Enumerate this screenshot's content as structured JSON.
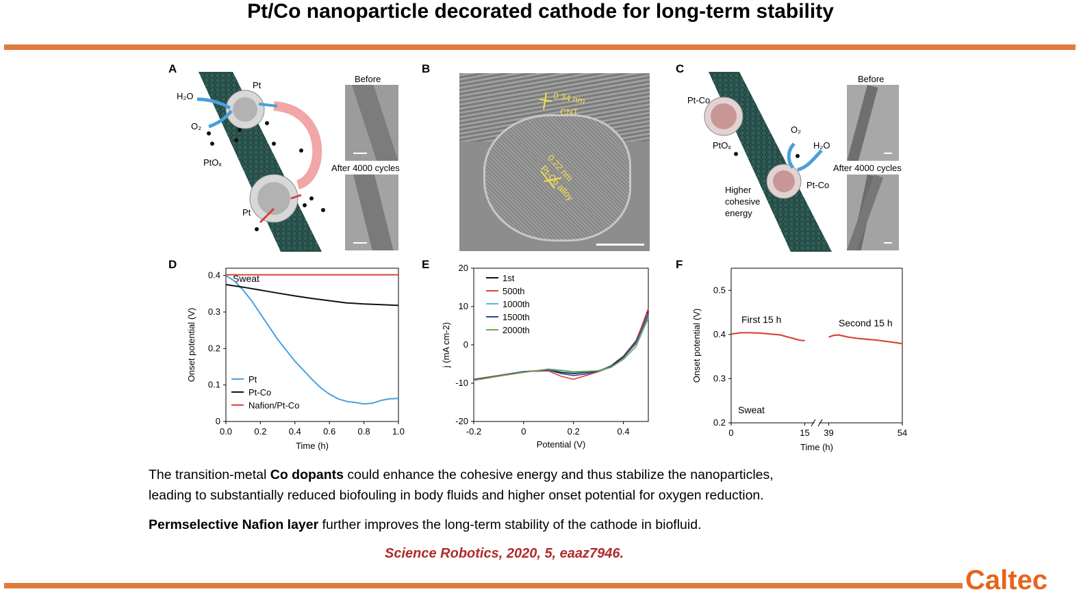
{
  "slide": {
    "title": "Pt/Co nanoparticle decorated cathode for long-term stability",
    "colors": {
      "rule": "#e07a3c",
      "citation": "#b02a2a",
      "brand": "#e5651d"
    }
  },
  "panelA": {
    "letter": "A",
    "labels": {
      "h2o": "H₂O",
      "o2": "O₂",
      "pt_top": "Pt",
      "ptox": "PtOₓ",
      "pt_bottom": "Pt"
    },
    "before": "Before",
    "after": "After 4000 cycles"
  },
  "panelB": {
    "letter": "B",
    "label_cnt_spacing": "0.34 nm",
    "label_cnt": "CNT",
    "label_alloy_spacing": "0.22 nm",
    "label_alloy": "Pt-Co alloy"
  },
  "panelC": {
    "letter": "C",
    "labels": {
      "ptco_top": "Pt-Co",
      "ptox": "PtOₓ",
      "o2": "O₂",
      "h2o": "H₂O",
      "ptco_bottom": "Pt-Co",
      "higher": "Higher",
      "cohesive": "cohesive",
      "energy": "energy"
    },
    "before": "Before",
    "after": "After 4000 cycles"
  },
  "charts": {
    "D": {
      "letter": "D"
    },
    "E": {
      "letter": "E"
    },
    "F": {
      "letter": "F"
    }
  },
  "chart_data": [
    {
      "type": "line",
      "panel": "D",
      "xlabel": "Time (h)",
      "ylabel": "Onset potential (V)",
      "xlim": [
        0,
        1.0
      ],
      "ylim": [
        0,
        0.42
      ],
      "xticks": [
        "0.0",
        "0.2",
        "0.4",
        "0.6",
        "0.8",
        "1.0"
      ],
      "yticks": [
        "0",
        "0.1",
        "0.2",
        "0.3",
        "0.4"
      ],
      "annotation": "Sweat",
      "legend_position": "bottom-left",
      "series": [
        {
          "name": "Pt",
          "color": "#4a9fdb",
          "x": [
            0,
            0.05,
            0.1,
            0.15,
            0.2,
            0.25,
            0.3,
            0.35,
            0.4,
            0.45,
            0.5,
            0.55,
            0.6,
            0.65,
            0.7,
            0.75,
            0.8,
            0.85,
            0.9,
            0.95,
            1.0
          ],
          "y": [
            0.4,
            0.385,
            0.36,
            0.33,
            0.295,
            0.26,
            0.225,
            0.195,
            0.165,
            0.14,
            0.115,
            0.092,
            0.075,
            0.062,
            0.055,
            0.052,
            0.048,
            0.05,
            0.058,
            0.062,
            0.063
          ]
        },
        {
          "name": "Pt-Co",
          "color": "#111111",
          "x": [
            0,
            0.1,
            0.2,
            0.3,
            0.4,
            0.5,
            0.6,
            0.7,
            0.8,
            0.9,
            1.0
          ],
          "y": [
            0.375,
            0.368,
            0.36,
            0.352,
            0.344,
            0.337,
            0.331,
            0.325,
            0.322,
            0.32,
            0.318
          ]
        },
        {
          "name": "Nafion/Pt-Co",
          "color": "#d9443a",
          "x": [
            0,
            0.5,
            1.0
          ],
          "y": [
            0.402,
            0.402,
            0.402
          ]
        }
      ]
    },
    {
      "type": "line",
      "panel": "E",
      "xlabel": "Potential (V)",
      "ylabel": "j (mA cm-2)",
      "xlim": [
        -0.2,
        0.5
      ],
      "ylim": [
        -20,
        20
      ],
      "xticks": [
        "-0.2",
        "0",
        "0.2",
        "0.4"
      ],
      "yticks": [
        "-20",
        "-10",
        "0",
        "10",
        "20"
      ],
      "legend_position": "top-left",
      "series": [
        {
          "name": "1st",
          "color": "#111111",
          "x": [
            -0.2,
            -0.1,
            0,
            0.1,
            0.15,
            0.2,
            0.25,
            0.3,
            0.35,
            0.4,
            0.45,
            0.5
          ],
          "y": [
            -9,
            -8,
            -7,
            -6.5,
            -7.2,
            -7.5,
            -7.2,
            -6.8,
            -5.5,
            -3,
            1,
            9
          ]
        },
        {
          "name": "500th",
          "color": "#d9443a",
          "x": [
            -0.2,
            -0.1,
            0,
            0.1,
            0.15,
            0.2,
            0.25,
            0.3,
            0.35,
            0.4,
            0.45,
            0.5
          ],
          "y": [
            -9,
            -8,
            -7,
            -6.8,
            -8.2,
            -9,
            -8,
            -7,
            -5.8,
            -3.2,
            0.8,
            9.5
          ]
        },
        {
          "name": "1000th",
          "color": "#58b4e0",
          "x": [
            -0.2,
            -0.1,
            0,
            0.1,
            0.15,
            0.2,
            0.25,
            0.3,
            0.35,
            0.4,
            0.45,
            0.5
          ],
          "y": [
            -9.2,
            -8.1,
            -7.1,
            -6.4,
            -6.8,
            -7.2,
            -7,
            -6.7,
            -5.6,
            -3.4,
            0.2,
            7.5
          ]
        },
        {
          "name": "1500th",
          "color": "#3b3f99",
          "x": [
            -0.2,
            -0.1,
            0,
            0.1,
            0.15,
            0.2,
            0.25,
            0.3,
            0.35,
            0.4,
            0.45,
            0.5
          ],
          "y": [
            -9.1,
            -8.1,
            -7,
            -6.6,
            -7.5,
            -8,
            -7.6,
            -6.9,
            -5.7,
            -3.3,
            0.5,
            8
          ]
        },
        {
          "name": "2000th",
          "color": "#6aaa4b",
          "x": [
            -0.2,
            -0.1,
            0,
            0.1,
            0.15,
            0.2,
            0.25,
            0.3,
            0.35,
            0.4,
            0.45,
            0.5
          ],
          "y": [
            -9.3,
            -8.2,
            -7.2,
            -6.3,
            -6.6,
            -7,
            -6.9,
            -6.8,
            -5.9,
            -3.8,
            -0.5,
            7
          ]
        }
      ]
    },
    {
      "type": "line",
      "panel": "F",
      "xlabel": "Time (h)",
      "ylabel": "Onset potential (V)",
      "ylim": [
        0.2,
        0.55
      ],
      "xticks": [
        "0",
        "15",
        "39",
        "54"
      ],
      "yticks": [
        "0.2",
        "0.3",
        "0.4",
        "0.5"
      ],
      "axis_break": [
        15,
        39
      ],
      "annotations": [
        "First 15 h",
        "Second 15 h",
        "Sweat"
      ],
      "series": [
        {
          "color": "#d9443a",
          "x": [
            0,
            2,
            4,
            6,
            8,
            10,
            12,
            13,
            14,
            15
          ],
          "y": [
            0.401,
            0.404,
            0.404,
            0.403,
            0.401,
            0.399,
            0.393,
            0.39,
            0.387,
            0.386
          ]
        },
        {
          "color": "#d9443a",
          "x": [
            39,
            40,
            41,
            43,
            45,
            47,
            49,
            51,
            53,
            54
          ],
          "y": [
            0.394,
            0.398,
            0.399,
            0.394,
            0.391,
            0.389,
            0.387,
            0.384,
            0.381,
            0.379
          ]
        }
      ]
    }
  ],
  "text": {
    "line1_pre": "The transition-metal ",
    "line1_bold": "Co dopants",
    "line1_post": " could enhance the cohesive energy and thus stabilize the nanoparticles,",
    "line2": "leading to substantially reduced biofouling in body fluids and higher onset potential for oxygen reduction.",
    "line3_bold": "Permselective Nafion layer",
    "line3_post": " further improves the long-term stability of the cathode in biofluid.",
    "citation": "Science Robotics, 2020, 5, eaaz7946.",
    "brand": "Caltec"
  }
}
